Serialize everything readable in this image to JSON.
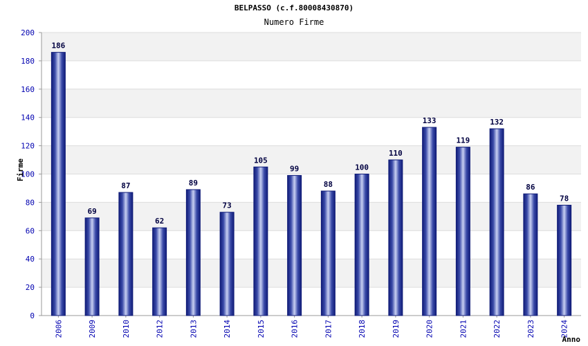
{
  "chart_data": {
    "type": "bar",
    "title": "BELPASSO (c.f.80008430870)",
    "subtitle": "Numero Firme",
    "xlabel": "Anno",
    "ylabel": "Firme",
    "ylim": [
      0,
      200
    ],
    "yticks": [
      0,
      20,
      40,
      60,
      80,
      100,
      120,
      140,
      160,
      180,
      200
    ],
    "categories": [
      "2006",
      "2009",
      "2010",
      "2012",
      "2013",
      "2014",
      "2015",
      "2016",
      "2017",
      "2018",
      "2019",
      "2020",
      "2021",
      "2022",
      "2023",
      "2024"
    ],
    "values": [
      186,
      69,
      87,
      62,
      89,
      73,
      105,
      99,
      88,
      100,
      110,
      133,
      119,
      132,
      86,
      78
    ],
    "grid": true,
    "colors": {
      "bar_edge": "#1a2a8a",
      "bar_center": "#c8d0f0",
      "bar_dark": "#2a3a9a",
      "tick": "#0000b0",
      "band": "#f2f2f2"
    }
  }
}
